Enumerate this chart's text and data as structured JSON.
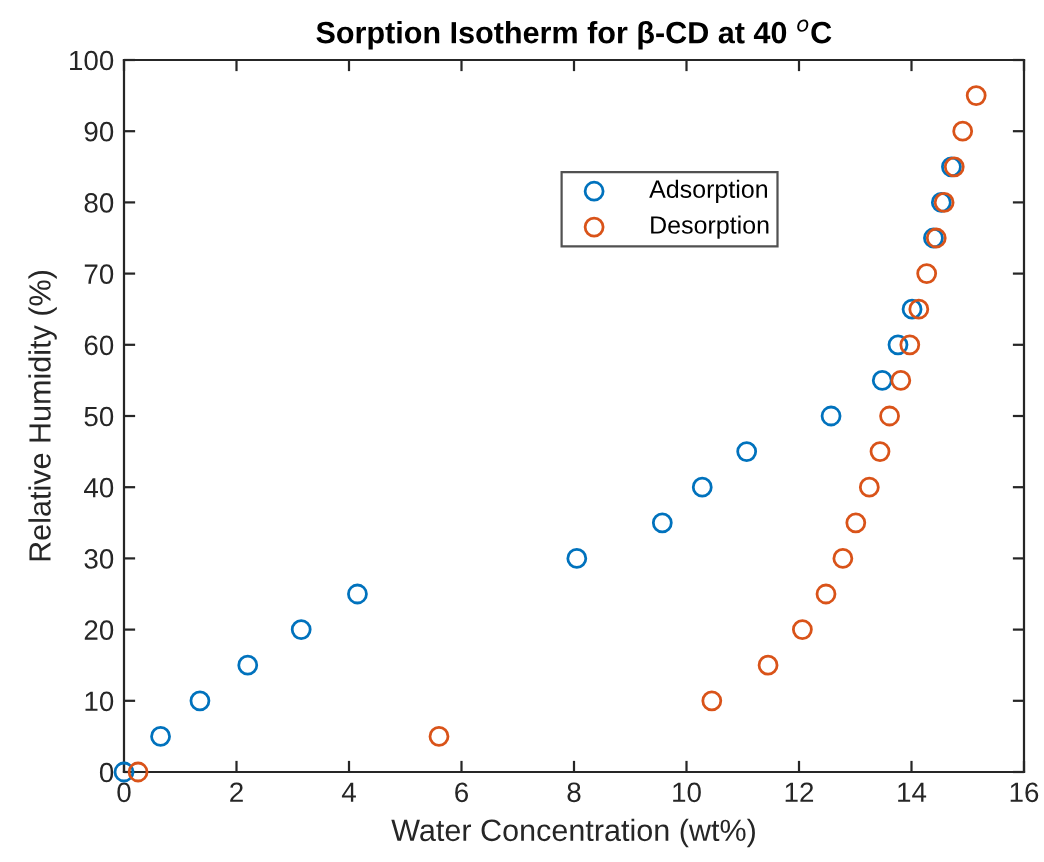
{
  "chart_data": {
    "type": "scatter",
    "title": "Sorption Isotherm for β-CD at 40 $^{o}$C",
    "xlabel": "Water Concentration (wt%)",
    "ylabel": "Relative Humidity (%)",
    "series": [
      {
        "name": "Adsorption",
        "color": "#0072bd",
        "x": [
          0,
          0.65,
          1.35,
          2.2,
          3.15,
          4.15,
          8.05,
          9.57,
          10.28,
          11.07,
          12.57,
          13.48,
          13.76,
          14.01,
          14.39,
          14.53,
          14.71
        ],
        "values": [
          0,
          5,
          10,
          15,
          20,
          25,
          30,
          35,
          40,
          45,
          50,
          55,
          60,
          65,
          75,
          80,
          85
        ]
      },
      {
        "name": "Desorption",
        "color": "#d95319",
        "x": [
          0.25,
          5.6,
          10.45,
          11.45,
          12.06,
          12.48,
          12.78,
          13.01,
          13.25,
          13.44,
          13.61,
          13.81,
          13.97,
          14.13,
          14.27,
          14.44,
          14.58,
          14.76,
          14.91,
          15.15
        ],
        "values": [
          0,
          5,
          10,
          15,
          20,
          25,
          30,
          35,
          40,
          45,
          50,
          55,
          60,
          65,
          70,
          75,
          80,
          85,
          90,
          95
        ]
      }
    ],
    "xlim": [
      0,
      16
    ],
    "xticks": [
      0,
      2,
      4,
      6,
      8,
      10,
      12,
      14,
      16
    ],
    "ylim": [
      0,
      100
    ],
    "yticks": [
      0,
      10,
      20,
      30,
      40,
      50,
      60,
      70,
      80,
      90,
      100
    ],
    "marker": "circle",
    "grid": false,
    "legend": "top right"
  }
}
